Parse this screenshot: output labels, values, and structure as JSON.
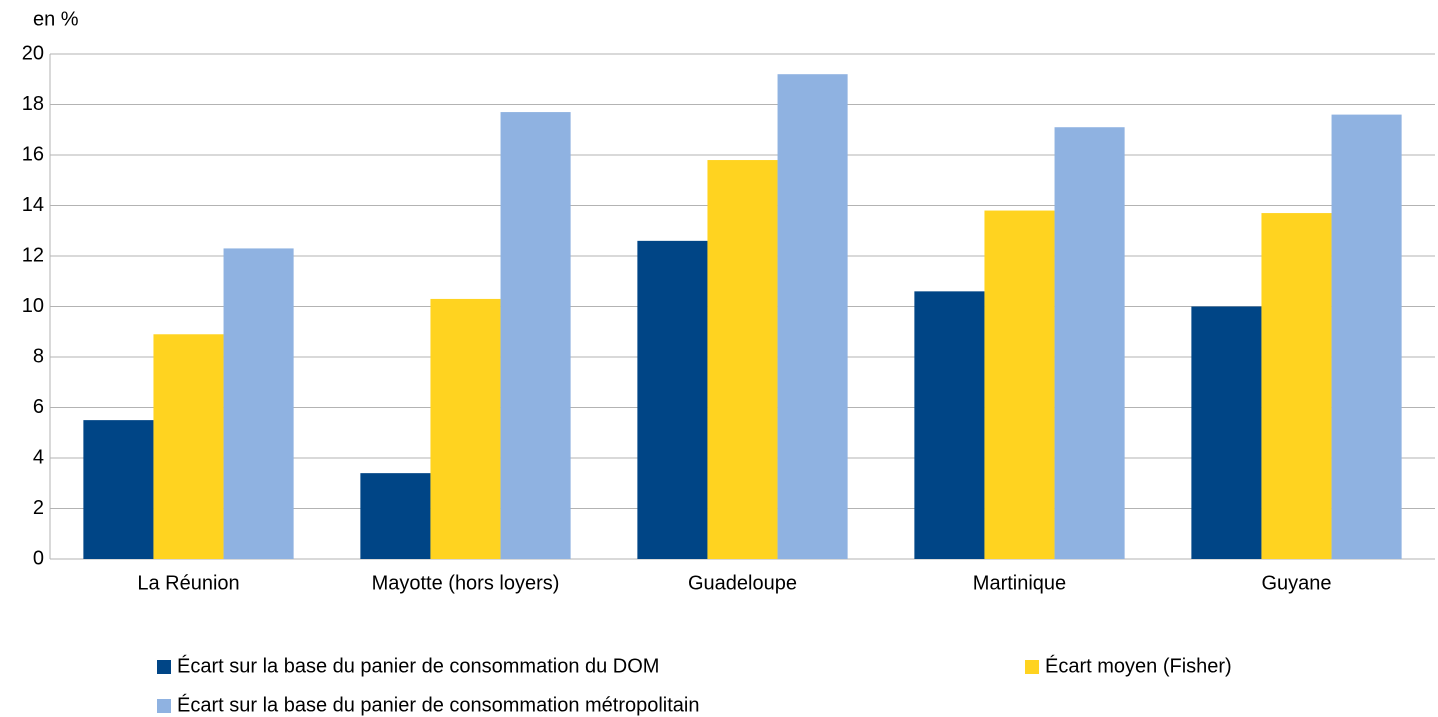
{
  "chart_data": {
    "type": "bar",
    "y_label": "en %",
    "categories": [
      "La Réunion",
      "Mayotte (hors loyers)",
      "Guadeloupe",
      "Martinique",
      "Guyane"
    ],
    "series": [
      {
        "name": "Écart sur la base du panier de consommation du DOM",
        "color": "#004586",
        "values": [
          5.5,
          3.4,
          12.6,
          10.6,
          10.0
        ]
      },
      {
        "name": "Écart moyen (Fisher)",
        "color": "#ffd320",
        "values": [
          8.9,
          10.3,
          15.8,
          13.8,
          13.7
        ]
      },
      {
        "name": "Écart sur la base du panier de consommation métropolitain",
        "color": "#8fb2e1",
        "values": [
          12.3,
          17.7,
          19.2,
          17.1,
          17.6
        ]
      }
    ],
    "ylim": [
      0,
      20
    ],
    "yticks": [
      0,
      2,
      4,
      6,
      8,
      10,
      12,
      14,
      16,
      18,
      20
    ],
    "grid": true,
    "legend": "bottom"
  }
}
